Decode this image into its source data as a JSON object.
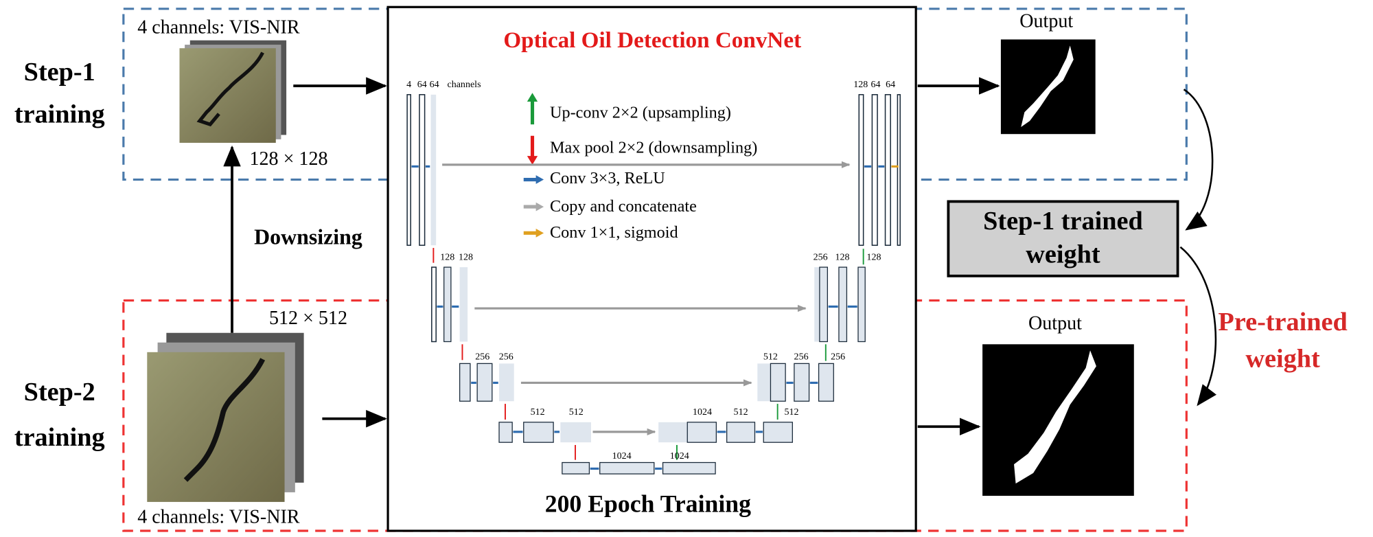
{
  "step1": {
    "title": [
      "Step-1",
      "training"
    ],
    "input_label": "4 channels: VIS-NIR",
    "input_size": "128 × 128",
    "output_label": "Output"
  },
  "step2": {
    "title": [
      "Step-2",
      "training"
    ],
    "input_size": "512 × 512",
    "input_label": "4 channels: VIS-NIR",
    "output_label": "Output"
  },
  "downsizing": "Downsizing",
  "convnet": {
    "title": "Optical Oil Detection ConvNet",
    "footer": "200 Epoch Training",
    "legend": [
      "Up-conv 2×2 (upsampling)",
      "Max pool 2×2 (downsampling)",
      "Conv 3×3, ReLU",
      "Copy and concatenate",
      "Conv 1×1, sigmoid"
    ],
    "channels": {
      "l1_left": [
        "4",
        "64",
        "64",
        "channels"
      ],
      "l1_right": [
        "128",
        "64",
        "64"
      ],
      "l2_left": [
        "128",
        "128"
      ],
      "l2_right": [
        "256",
        "128",
        "128"
      ],
      "l3_left": [
        "256",
        "256"
      ],
      "l3_right": [
        "512",
        "256",
        "256"
      ],
      "l4_left": [
        "512",
        "512"
      ],
      "l4_right": [
        "1024",
        "512",
        "512"
      ],
      "l5": [
        "1024",
        "1024"
      ]
    }
  },
  "trained_weight": [
    "Step-1 trained",
    "weight"
  ],
  "pretrained_weight": [
    "Pre-trained",
    "weight"
  ]
}
